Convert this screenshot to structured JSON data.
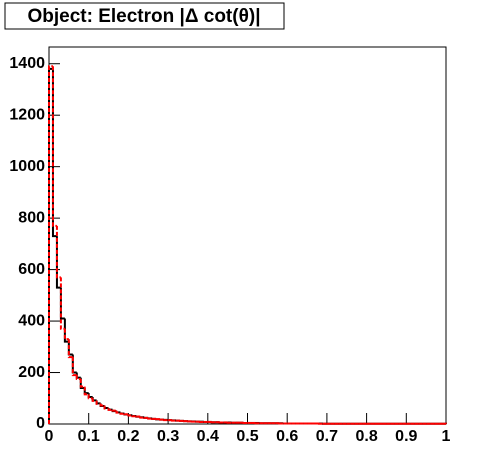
{
  "chart_data": {
    "type": "histogram",
    "title": "Object: Electron |Δ cot(θ)|",
    "bins": [
      0,
      0.01,
      0.02,
      0.03,
      0.04,
      0.05,
      0.06,
      0.07,
      0.08,
      0.09,
      0.1,
      0.11,
      0.12,
      0.13,
      0.14,
      0.15,
      0.16,
      0.17,
      0.18,
      0.19,
      0.2,
      0.21,
      0.22,
      0.23,
      0.24,
      0.25,
      0.26,
      0.27,
      0.28,
      0.29,
      0.3,
      0.31,
      0.32,
      0.33,
      0.34,
      0.35,
      0.36,
      0.37,
      0.38,
      0.39,
      0.4,
      0.41,
      0.42,
      0.43,
      0.44,
      0.45,
      0.46,
      0.47,
      0.48,
      0.49,
      0.5,
      0.51,
      0.52,
      0.53,
      0.54,
      0.55,
      0.56,
      0.57,
      0.58,
      0.59,
      0.6,
      0.61,
      0.62,
      0.63,
      0.64,
      0.65,
      0.66,
      0.67,
      0.68,
      0.69,
      0.7,
      0.71,
      0.72,
      0.73,
      0.74,
      0.75,
      0.76,
      0.77,
      0.78,
      0.79,
      0.8,
      0.81,
      0.82,
      0.83,
      0.84,
      0.85,
      0.86,
      0.87,
      0.88,
      0.89,
      0.9,
      0.91,
      0.92,
      0.93,
      0.94,
      0.95,
      0.96,
      0.97,
      0.98,
      0.99,
      1
    ],
    "series": [
      {
        "color": "#000000",
        "dashed": false,
        "values": [
          1380,
          730,
          530,
          410,
          320,
          270,
          200,
          180,
          140,
          120,
          105,
          92,
          80,
          70,
          62,
          56,
          50,
          45,
          41,
          37,
          34,
          31,
          28,
          26,
          24,
          22,
          20,
          18,
          17,
          16,
          15,
          14,
          13,
          12,
          11,
          10,
          10,
          9,
          9,
          8,
          8,
          7,
          7,
          6,
          6,
          6,
          5,
          5,
          5,
          4,
          4,
          4,
          4,
          3,
          3,
          3,
          3,
          3,
          3,
          2,
          2,
          2,
          2,
          2,
          2,
          2,
          2,
          2,
          2,
          1,
          1,
          1,
          1,
          1,
          1,
          1,
          1,
          1,
          1,
          1,
          1,
          1,
          1,
          1,
          1,
          1,
          1,
          1,
          1,
          1,
          1,
          1,
          1,
          1,
          1,
          1,
          1,
          1,
          1,
          1
        ]
      },
      {
        "color": "#ff0000",
        "dashed": true,
        "values": [
          1390,
          770,
          570,
          370,
          330,
          260,
          190,
          175,
          145,
          115,
          100,
          90,
          78,
          72,
          60,
          55,
          52,
          44,
          40,
          38,
          33,
          30,
          29,
          25,
          24,
          21,
          20,
          19,
          17,
          15,
          15,
          13,
          13,
          12,
          11,
          10,
          9,
          9,
          8,
          8,
          8,
          7,
          7,
          6,
          6,
          5,
          5,
          5,
          5,
          4,
          4,
          4,
          3,
          3,
          3,
          3,
          3,
          3,
          2,
          2,
          2,
          2,
          2,
          2,
          2,
          2,
          2,
          2,
          1,
          1,
          1,
          1,
          1,
          1,
          1,
          1,
          1,
          1,
          1,
          1,
          1,
          1,
          1,
          1,
          1,
          1,
          1,
          1,
          1,
          1,
          1,
          1,
          1,
          1,
          1,
          1,
          1,
          1,
          1,
          1
        ]
      }
    ],
    "xlim": [
      0,
      1
    ],
    "xticks": [
      0,
      0.1,
      0.2,
      0.3,
      0.4,
      0.5,
      0.6,
      0.7,
      0.8,
      0.9,
      1
    ],
    "ylim": [
      0,
      1465
    ],
    "yticks": [
      0,
      200,
      400,
      600,
      800,
      1000,
      1200,
      1400
    ]
  }
}
